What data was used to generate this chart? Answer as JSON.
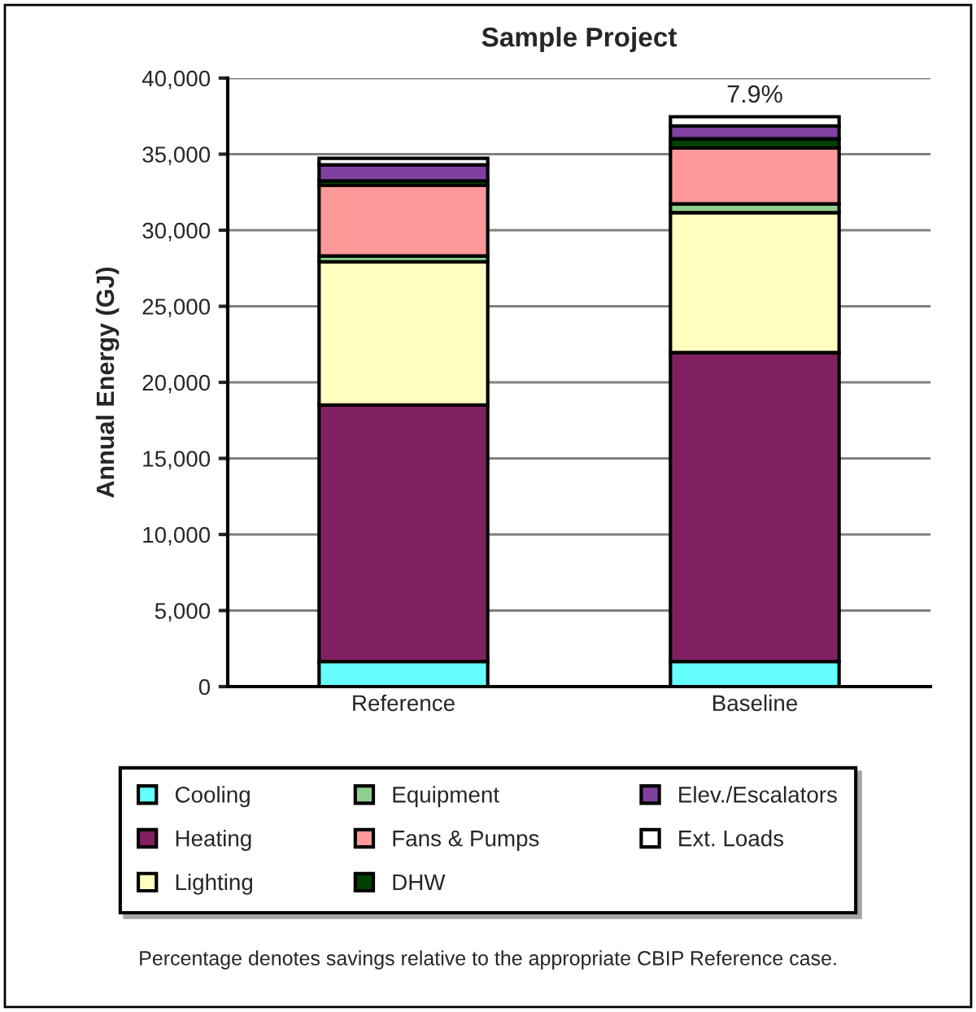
{
  "chart_data": {
    "type": "bar",
    "title": "Sample Project",
    "ylabel": "Annual Energy (GJ)",
    "categories": [
      "Reference",
      "Baseline"
    ],
    "stacked": true,
    "series": [
      {
        "name": "Cooling",
        "color": "#66ffff",
        "values": [
          1650,
          1650
        ]
      },
      {
        "name": "Heating",
        "color": "#802060",
        "values": [
          16860,
          20310
        ]
      },
      {
        "name": "Lighting",
        "color": "#ffffc0",
        "values": [
          9410,
          9200
        ]
      },
      {
        "name": "Equipment",
        "color": "#8fd08f",
        "values": [
          390,
          570
        ]
      },
      {
        "name": "Fans & Pumps",
        "color": "#ff9999",
        "values": [
          4630,
          3670
        ]
      },
      {
        "name": "DHW",
        "color": "#004000",
        "values": [
          310,
          610
        ]
      },
      {
        "name": "Elev./Escalators",
        "color": "#8040a0",
        "values": [
          1050,
          850
        ]
      },
      {
        "name": "Ext. Loads",
        "color": "#ffffff",
        "values": [
          430,
          600
        ]
      }
    ],
    "ylim": [
      0,
      40000
    ],
    "yticks": [
      {
        "value": 0,
        "label": "0"
      },
      {
        "value": 5000,
        "label": "5,000"
      },
      {
        "value": 10000,
        "label": "10,000"
      },
      {
        "value": 15000,
        "label": "15,000"
      },
      {
        "value": 20000,
        "label": "20,000"
      },
      {
        "value": 25000,
        "label": "25,000"
      },
      {
        "value": 30000,
        "label": "30,000"
      },
      {
        "value": 35000,
        "label": "35,000"
      },
      {
        "value": 40000,
        "label": "40,000"
      }
    ],
    "grid": "y",
    "legend": "bottom",
    "annotations": [
      {
        "text": "7.9%",
        "x": "Baseline",
        "y": 37460
      },
      "Percentage denotes savings relative to the appropriate CBIP Reference case."
    ]
  }
}
